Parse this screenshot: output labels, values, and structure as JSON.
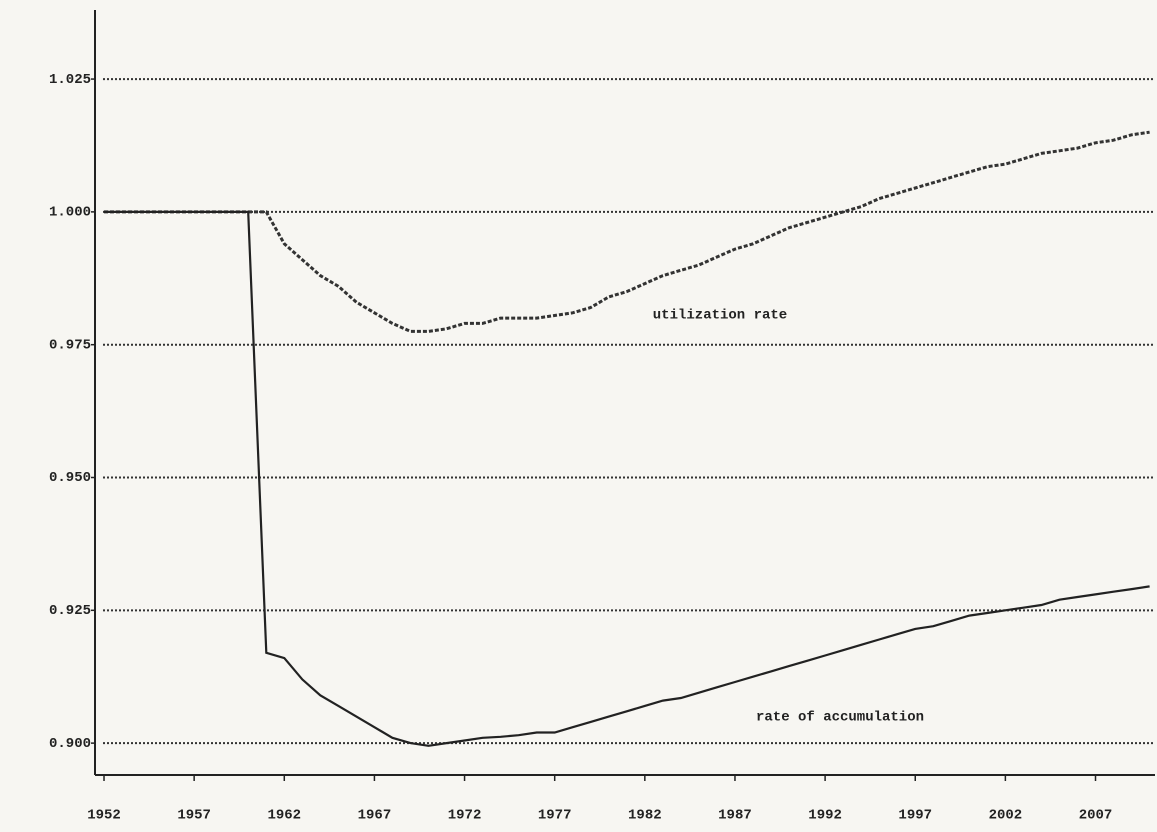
{
  "chart_data": {
    "type": "line",
    "x": [
      1952,
      1953,
      1954,
      1955,
      1956,
      1957,
      1958,
      1959,
      1960,
      1961,
      1962,
      1963,
      1964,
      1965,
      1966,
      1967,
      1968,
      1969,
      1970,
      1971,
      1972,
      1973,
      1974,
      1975,
      1976,
      1977,
      1978,
      1979,
      1980,
      1981,
      1982,
      1983,
      1984,
      1985,
      1986,
      1987,
      1988,
      1989,
      1990,
      1991,
      1992,
      1993,
      1994,
      1995,
      1996,
      1997,
      1998,
      1999,
      2000,
      2001,
      2002,
      2003,
      2004,
      2005,
      2006,
      2007,
      2008,
      2009,
      2010
    ],
    "series": [
      {
        "name": "utilization rate",
        "color": "#333333",
        "dashed": true,
        "values": [
          1.0,
          1.0,
          1.0,
          1.0,
          1.0,
          1.0,
          1.0,
          1.0,
          1.0,
          1.0,
          0.994,
          0.991,
          0.988,
          0.986,
          0.983,
          0.981,
          0.979,
          0.9775,
          0.9775,
          0.978,
          0.979,
          0.979,
          0.98,
          0.98,
          0.98,
          0.9805,
          0.981,
          0.982,
          0.984,
          0.985,
          0.9865,
          0.988,
          0.989,
          0.99,
          0.9915,
          0.993,
          0.994,
          0.9955,
          0.997,
          0.998,
          0.999,
          1.0,
          1.001,
          1.0025,
          1.0035,
          1.0045,
          1.0055,
          1.0065,
          1.0075,
          1.0085,
          1.009,
          1.01,
          1.011,
          1.0115,
          1.012,
          1.013,
          1.0135,
          1.0145,
          1.015
        ]
      },
      {
        "name": "rate of accumulation",
        "color": "#222222",
        "dashed": false,
        "values": [
          1.0,
          1.0,
          1.0,
          1.0,
          1.0,
          1.0,
          1.0,
          1.0,
          1.0,
          0.917,
          0.916,
          0.912,
          0.909,
          0.907,
          0.905,
          0.903,
          0.901,
          0.9,
          0.8995,
          0.9,
          0.9005,
          0.901,
          0.9012,
          0.9015,
          0.902,
          0.902,
          0.903,
          0.904,
          0.905,
          0.906,
          0.907,
          0.908,
          0.9085,
          0.9095,
          0.9105,
          0.9115,
          0.9125,
          0.9135,
          0.9145,
          0.9155,
          0.9165,
          0.9175,
          0.9185,
          0.9195,
          0.9205,
          0.9215,
          0.922,
          0.923,
          0.924,
          0.9245,
          0.925,
          0.9255,
          0.926,
          0.927,
          0.9275,
          0.928,
          0.9285,
          0.929,
          0.9295
        ]
      }
    ],
    "xlim": [
      1951.5,
      2010.3
    ],
    "xticks": [
      1952,
      1957,
      1962,
      1967,
      1972,
      1977,
      1982,
      1987,
      1992,
      1997,
      2002,
      2007
    ],
    "ylim": [
      0.894,
      1.038
    ],
    "yticks": [
      {
        "value": 0.9,
        "label": "0.900"
      },
      0.925,
      {
        "value": 0.95,
        "label": "0.950"
      },
      0.975,
      {
        "value": 1,
        "label": "1.000"
      },
      1.025
    ],
    "grid": true
  }
}
